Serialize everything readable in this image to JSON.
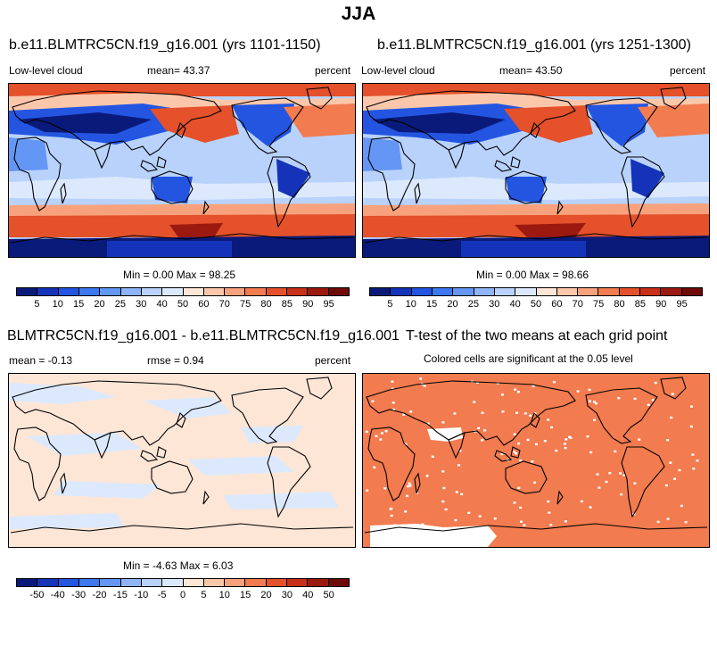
{
  "title": "JJA",
  "panels": {
    "p1": {
      "title": "b.e11.BLMTRC5CN.f19_g16.001 (yrs 1101-1150)",
      "left_label": "Low-level cloud",
      "center_label": "mean=  43.37",
      "right_label": "percent",
      "minmax": "Min =   0.00 Max =  98.25"
    },
    "p2": {
      "title": "b.e11.BLMTRC5CN.f19_g16.001 (yrs 1251-1300)",
      "left_label": "Low-level cloud",
      "center_label": "mean=  43.50",
      "right_label": "percent",
      "minmax": "Min =   0.00 Max =  98.66"
    },
    "p3": {
      "title": "BLMTRC5CN.f19_g16.001 - b.e11.BLMTRC5CN.f19_g16.001",
      "left_label": "mean =  -0.13",
      "center_label": "rmse =   0.94",
      "right_label": "percent",
      "minmax": "Min =  -4.63 Max =   6.03"
    },
    "p4": {
      "title": "T-test of the two means at each grid point",
      "subtitle": "Colored cells are significant at the 0.05 level"
    }
  },
  "colorbar_main": {
    "colors": [
      "#0a1a7a",
      "#1433b8",
      "#2455e0",
      "#3c78f0",
      "#6496f5",
      "#8fb4f8",
      "#b8d2fb",
      "#dce9fd",
      "#fde6d6",
      "#fbc7ab",
      "#f8a27d",
      "#f27b4f",
      "#e4512a",
      "#c8301a",
      "#9c1910",
      "#6e0a08"
    ],
    "ticks": [
      "5",
      "10",
      "15",
      "20",
      "25",
      "30",
      "40",
      "50",
      "60",
      "70",
      "75",
      "80",
      "85",
      "90",
      "95"
    ]
  },
  "colorbar_diff": {
    "colors": [
      "#0a1a7a",
      "#1433b8",
      "#2455e0",
      "#3c78f0",
      "#6496f5",
      "#8fb4f8",
      "#b8d2fb",
      "#dce9fd",
      "#fde6d6",
      "#fbc7ab",
      "#f8a27d",
      "#f27b4f",
      "#e4512a",
      "#c8301a",
      "#9c1910",
      "#6e0a08"
    ],
    "ticks": [
      "-50",
      "-40",
      "-30",
      "-20",
      "-15",
      "-10",
      "-5",
      "0",
      "5",
      "10",
      "15",
      "20",
      "30",
      "40",
      "50"
    ]
  }
}
